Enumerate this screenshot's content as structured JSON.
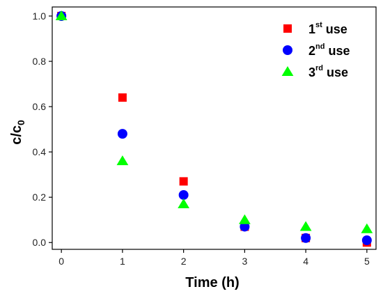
{
  "chart_data": {
    "type": "scatter",
    "xlabel": "Time (h)",
    "ylabel": {
      "main": "c/c",
      "sub": "0"
    },
    "xlim": [
      -0.15,
      5.15
    ],
    "ylim": [
      -0.03,
      1.04
    ],
    "xticks": [
      0,
      1,
      2,
      3,
      4,
      5
    ],
    "xtick_labels": [
      "0",
      "1",
      "2",
      "3",
      "4",
      "5"
    ],
    "yticks": [
      0.0,
      0.2,
      0.4,
      0.6,
      0.8,
      1.0
    ],
    "ytick_labels": [
      "0.0",
      "0.2",
      "0.4",
      "0.6",
      "0.8",
      "1.0"
    ],
    "grid": false,
    "legend_position": "top-right",
    "series": [
      {
        "name": "1st use",
        "name_parts": [
          "1",
          "st",
          " use"
        ],
        "marker": "square",
        "color": "#ff0000",
        "x": [
          0,
          1,
          2,
          3,
          4,
          5
        ],
        "y": [
          1.0,
          0.64,
          0.27,
          0.07,
          0.02,
          0.0
        ]
      },
      {
        "name": "2nd use",
        "name_parts": [
          "2",
          "nd",
          " use"
        ],
        "marker": "circle",
        "color": "#0000ff",
        "x": [
          0,
          1,
          2,
          3,
          4,
          5
        ],
        "y": [
          1.0,
          0.48,
          0.21,
          0.07,
          0.02,
          0.01
        ]
      },
      {
        "name": "3rd use",
        "name_parts": [
          "3",
          "rd",
          " use"
        ],
        "marker": "triangle",
        "color": "#00ff00",
        "x": [
          0,
          1,
          2,
          3,
          4,
          5
        ],
        "y": [
          1.0,
          0.36,
          0.17,
          0.1,
          0.07,
          0.06
        ]
      }
    ]
  }
}
